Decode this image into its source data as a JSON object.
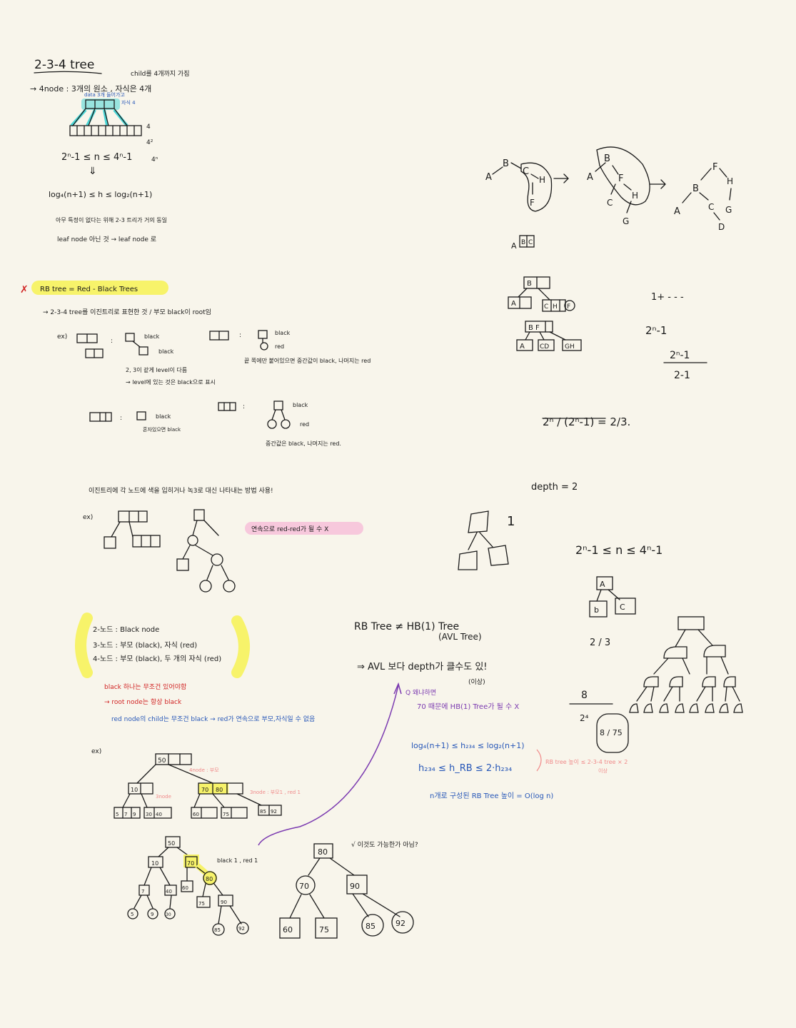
{
  "title": "2-3-4 tree",
  "notes": {
    "child_note": "child를 4개까지 가짐",
    "fournode": "→ 4node : 3개의 원소 , 자식은 4개",
    "data_note": "data 3개 들어가고",
    "child_4": "자식 4",
    "level_4": "4",
    "level_4sq": "4²",
    "level_4n": "4ⁿ",
    "range_n": "2ⁿ-1 ≤ n ≤ 4ⁿ-1",
    "down_arrow": "⇓",
    "height_range": "log₄(n+1) ≤ h ≤ log₂(n+1)",
    "balance_note": "아무 특정이 없다는 위해 2-3 트리가 거의 동일",
    "leaf_note": "leaf node 아닌 것 → leaf node 로",
    "rb_title": "RB tree = Red - Black Trees",
    "rb_desc": "→ 2-3-4 tree를 이진트리로 표현한 것 / 부모 black이 root임",
    "ex": "ex)",
    "black": "black",
    "red": "red",
    "colon": ":",
    "rule_same_level": "2, 3이 같게 level이 다름",
    "rule_level_black": "→ level에 있는 것은 black으로 표시",
    "rule_middle": "끝 쪽에만 붙어있으면 중간값이 black, 나머지는 red",
    "rule_bucket": "혼자있으면 black",
    "rule_center": "중간값은 black, 나머지는 red.",
    "binary_note": "이진트리에 각 노드에 색을 입히거나 녹3로 대신 나타내는 방법 사용!",
    "no_red_red": "연속으로 red-red가 될 수 X",
    "node2": "2-노드 : Black node",
    "node3": "3-노드 : 부모 (black), 자식 (red)",
    "node4": "4-노드 : 부모 (black), 두 개의 자식 (red)",
    "red_note1": "black 하나는 무조건 있어야함",
    "red_note2": "→ root node는 항상 black",
    "blue_note": "red node의 child는 무조건 black → red가 연속으로 부모,자식일 수 없음",
    "note_4node": "4node : 부모",
    "note_3node": "3node",
    "note_2node": "3node : 부모1 , red 1",
    "black_red": "black 1 , red 1",
    "check_q": "√ 이것도 가능한가 아님?",
    "rb_ne": "RB Tree ≠ HB(1) Tree",
    "avl": "(AVL Tree)",
    "avl_depth": "⇒ AVL 보다 depth가 클수도 있!",
    "idsang": "(이상)",
    "q_reason": "Q 왜냐하면",
    "q_answer": "70 때문에 HB(1) Tree가 될 수 X",
    "h_range1": "log₄(n+1) ≤ h₂₃₄ ≤ log₂(n+1)",
    "h_range2": "h₂₃₄ ≤ h_RB ≤ 2·h₂₃₄",
    "h_note": "RB tree 높이 ≤ 2-3-4 tree × 2",
    "h_note2": "이상",
    "big_o": "n개로 구성된 RB Tree 높이 = O(log n)",
    "depth": "depth = 2",
    "one": "1",
    "range2": "2ⁿ-1 ≤ n ≤ 4ⁿ-1",
    "two_thirds": "2 / 3",
    "frac_big": "2ⁿ / (2ⁿ-1) = 2/3.",
    "sum_series": "1+ - - -",
    "pow_minus": "2ⁿ-1",
    "frac2_num": "2ⁿ-1",
    "frac2_den": "2-1",
    "abc_label": "A|B|C",
    "eight": "8",
    "four_sq": "2⁴",
    "eight_over": "8 / 75"
  },
  "highlights": {
    "yellow": "#f7f36a",
    "pink": "#f7c8dc",
    "cyan": "#49d6d6",
    "red_ink": "#d12424",
    "blue_ink": "#2757b8",
    "purple_ink": "#7b3ab0",
    "pink_ink": "#f08a8a"
  }
}
